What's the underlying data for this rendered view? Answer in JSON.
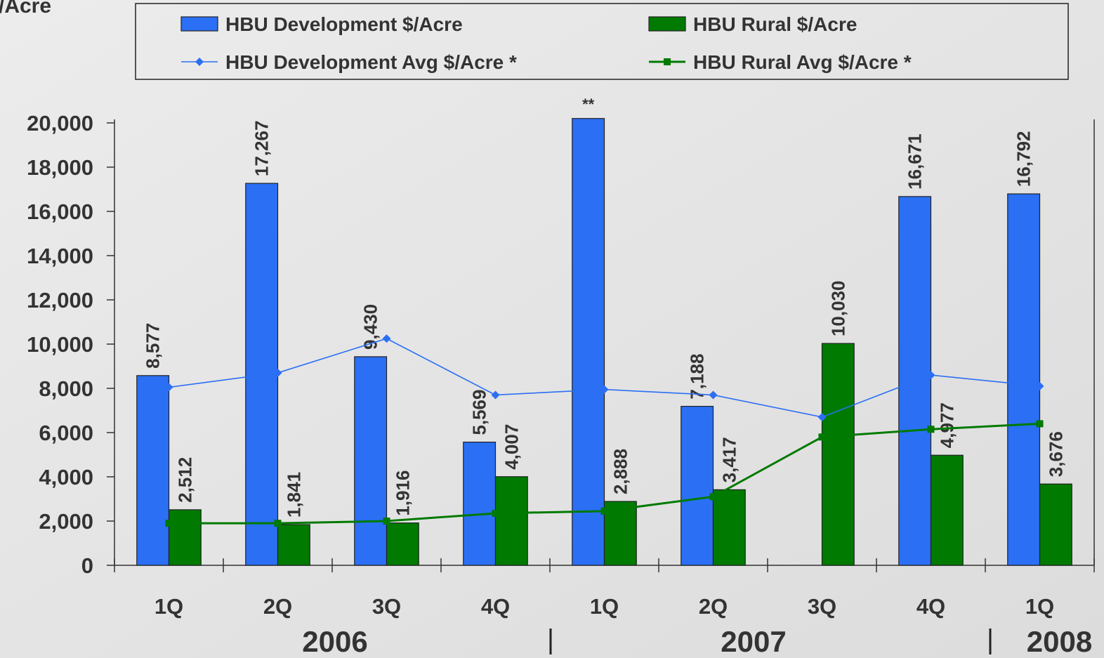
{
  "chart_data": {
    "type": "bar",
    "y_label": "/Acre",
    "categories": [
      "1Q",
      "2Q",
      "3Q",
      "4Q",
      "1Q",
      "2Q",
      "3Q",
      "4Q",
      "1Q"
    ],
    "groups": [
      {
        "label": "2006",
        "span": [
          0,
          3
        ]
      },
      {
        "label": "2007",
        "span": [
          4,
          7
        ]
      },
      {
        "label": "2008",
        "span": [
          8,
          8
        ]
      }
    ],
    "ylim": [
      0,
      20000
    ],
    "yticks": [
      0,
      {
        "value": 2000,
        "label": "2,000"
      },
      {
        "value": 4000,
        "label": "4,000"
      },
      {
        "value": 6000,
        "label": "6,000"
      },
      {
        "value": 8000,
        "label": "8,000"
      },
      {
        "value": 10000,
        "label": "10,000"
      },
      {
        "value": 12000,
        "label": "12,000"
      },
      {
        "value": 14000,
        "label": "14,000"
      },
      {
        "value": 16000,
        "label": "16,000"
      },
      {
        "value": 18000,
        "label": "18,000"
      },
      {
        "value": 20000,
        "label": "20,000"
      }
    ],
    "annotations": [
      {
        "text": "**",
        "category": 4
      }
    ],
    "series": [
      {
        "name": "HBU Development $/Acre",
        "type": "bar",
        "color": "#2b6ff4",
        "values": [
          8577,
          17267,
          9430,
          5569,
          20200,
          7188,
          null,
          16671,
          16792
        ],
        "value_labels": [
          "8,577",
          "17,267",
          "9,430",
          "5,569",
          null,
          "7,188",
          null,
          "16,671",
          "16,792"
        ]
      },
      {
        "name": "HBU Rural $/Acre",
        "type": "bar",
        "color": "#007a00",
        "values": [
          2512,
          1841,
          1916,
          4007,
          2888,
          3417,
          10030,
          4977,
          3676
        ],
        "value_labels": [
          "2,512",
          "1,841",
          "1,916",
          "4,007",
          "2,888",
          "3,417",
          "10,030",
          "4,977",
          "3,676"
        ]
      },
      {
        "name": "HBU Development Avg $/Acre *",
        "type": "line",
        "marker": "diamond",
        "color": "#2b6ff4",
        "values": [
          8050,
          8700,
          10250,
          7700,
          7950,
          7700,
          6700,
          8600,
          8100
        ]
      },
      {
        "name": "HBU Rural Avg $/Acre *",
        "type": "line",
        "marker": "square",
        "color": "#007a00",
        "values": [
          1900,
          1900,
          2000,
          2350,
          2450,
          3100,
          5800,
          6150,
          6400
        ]
      }
    ]
  }
}
